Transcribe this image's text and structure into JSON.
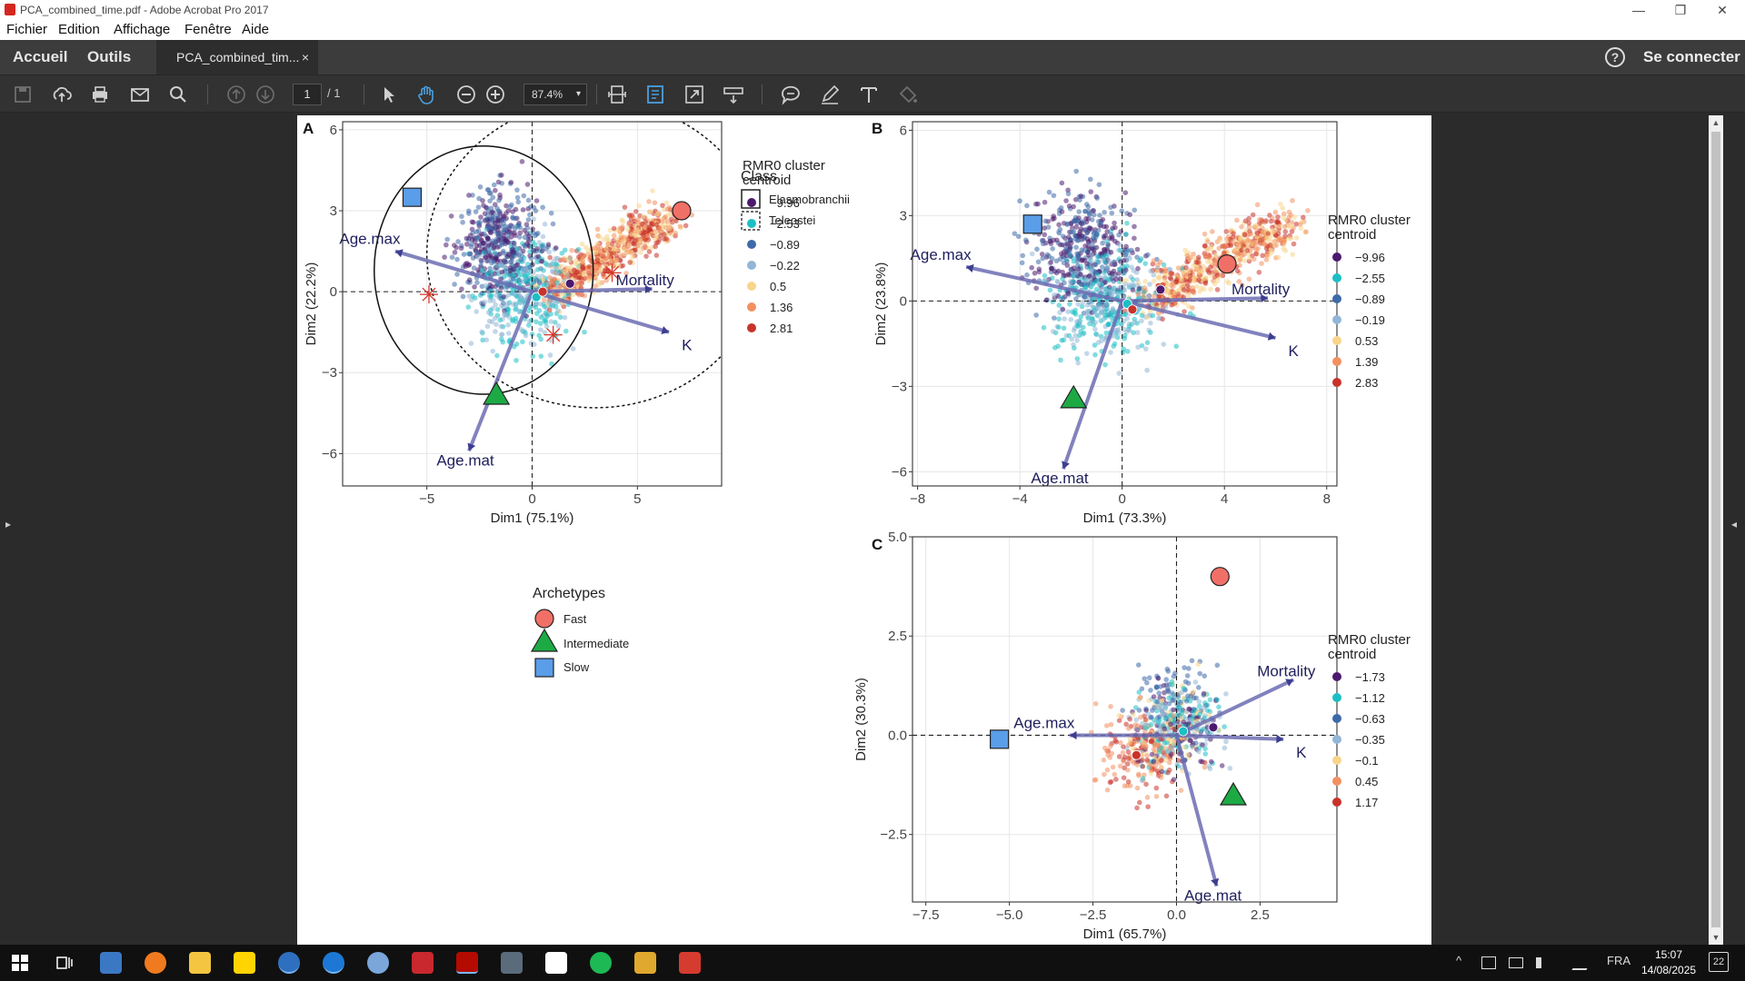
{
  "window": {
    "title": "PCA_combined_time.pdf - Adobe Acrobat Pro 2017",
    "icons": {
      "pdf": "pdf-file-icon",
      "minimize": "minimize-icon",
      "restore": "restore-icon",
      "close": "close-icon"
    },
    "min_glyph": "—",
    "restore_glyph": "❐",
    "close_glyph": "✕"
  },
  "menu": {
    "items": [
      "Fichier",
      "Edition",
      "Affichage",
      "Fenêtre",
      "Aide"
    ]
  },
  "tabs": {
    "home": "Accueil",
    "tools": "Outils",
    "document": "PCA_combined_tim...",
    "close_glyph": "×",
    "help_glyph": "?",
    "login": "Se connecter"
  },
  "toolbar": {
    "page_current": "1",
    "page_total": "/ 1",
    "zoom": "87.4%",
    "caret": "▾",
    "icons": [
      "save-icon",
      "cloud-upload-icon",
      "print-icon",
      "email-icon",
      "search-icon",
      "page-up-icon",
      "page-down-icon",
      "select-arrow-icon",
      "hand-icon",
      "zoom-out-icon",
      "zoom-in-icon",
      "fit-page-icon",
      "fit-width-icon",
      "fullscreen-icon",
      "scroll-mode-icon",
      "comment-icon",
      "pen-icon",
      "text-icon",
      "fill-icon"
    ]
  },
  "side": {
    "left_arrow": "▸",
    "right_arrow": "◂",
    "scroll_up": "▲",
    "scroll_down": "▼"
  },
  "figure": {
    "legend_class": {
      "title": "Class",
      "items": [
        "Elasmobranchii",
        "Teleostei"
      ]
    },
    "legend_archetypes": {
      "title": "Archetypes",
      "items": [
        "Fast",
        "Intermediate",
        "Slow"
      ]
    },
    "archetype_colors": {
      "Fast": "#f07067",
      "Intermediate": "#1daa45",
      "Slow": "#5a9de8"
    },
    "cluster_colors": [
      "#4b1a6e",
      "#1cbfc4",
      "#3e6aa8",
      "#92b6d6",
      "#f8d58a",
      "#f29060",
      "#c8332a"
    ],
    "arrow_color": "#6c6cb3"
  },
  "chart_data": [
    {
      "panel": "A",
      "type": "scatter",
      "xlabel": "Dim1 (75.1%)",
      "ylabel": "Dim2 (22.2%)",
      "xlim": [
        -9,
        9
      ],
      "ylim": [
        -7.2,
        6.3
      ],
      "xticks": [
        -5,
        0,
        5
      ],
      "yticks": [
        -6,
        -3,
        0,
        3,
        6
      ],
      "xtick_labels": [
        "−5",
        "0",
        "5"
      ],
      "ytick_labels": [
        "−6",
        "−3",
        "0",
        "3",
        "6"
      ],
      "legend_title": "RMR0 cluster centroid",
      "legend": [
        "−9.96",
        "−2.53",
        "−0.89",
        "−0.22",
        "0.5",
        "1.36",
        "2.81"
      ],
      "vectors": [
        {
          "name": "Age.max",
          "x": -6.5,
          "y": 1.5
        },
        {
          "name": "Mortality",
          "x": 5.7,
          "y": 0.1
        },
        {
          "name": "K",
          "x": 6.5,
          "y": -1.5
        },
        {
          "name": "Age.mat",
          "x": -3.0,
          "y": -5.9
        }
      ],
      "archetypes": [
        {
          "name": "Fast",
          "x": 7.1,
          "y": 3.0
        },
        {
          "name": "Intermediate",
          "x": -1.7,
          "y": -3.8
        },
        {
          "name": "Slow",
          "x": -5.7,
          "y": 3.5
        }
      ],
      "class_centroids": [
        {
          "class": "Elasmobranchii",
          "x": -4.9,
          "y": -0.1
        },
        {
          "class": "Elasmobranchii",
          "x": 1.0,
          "y": -1.6
        },
        {
          "class": "Teleostei",
          "x": 3.8,
          "y": 0.7
        }
      ],
      "cluster_centroids": [
        {
          "x": 1.8,
          "y": 0.3,
          "cluster": 0
        },
        {
          "x": 0.2,
          "y": -0.2,
          "cluster": 1
        },
        {
          "x": 0.5,
          "y": 0.0,
          "cluster": 6
        }
      ],
      "ellipses": [
        {
          "class": "Elasmobranchii",
          "cx": -2.3,
          "cy": 0.8,
          "rx": 5.2,
          "ry": 4.6
        },
        {
          "class": "Teleostei",
          "cx": 3.0,
          "cy": 1.4,
          "rx": 8.0,
          "ry": 5.7
        }
      ]
    },
    {
      "panel": "B",
      "type": "scatter",
      "xlabel": "Dim1 (73.3%)",
      "ylabel": "Dim2 (23.8%)",
      "xlim": [
        -8.2,
        8.4
      ],
      "ylim": [
        -6.5,
        6.3
      ],
      "xticks": [
        -8,
        -4,
        0,
        4,
        8
      ],
      "yticks": [
        -6,
        -3,
        0,
        3,
        6
      ],
      "xtick_labels": [
        "−8",
        "−4",
        "0",
        "4",
        "8"
      ],
      "ytick_labels": [
        "−6",
        "−3",
        "0",
        "3",
        "6"
      ],
      "legend_title": "RMR0 cluster centroid",
      "legend": [
        "−9.96",
        "−2.55",
        "−0.89",
        "−0.19",
        "0.53",
        "1.39",
        "2.83"
      ],
      "vectors": [
        {
          "name": "Age.max",
          "x": -6.1,
          "y": 1.2
        },
        {
          "name": "Mortality",
          "x": 5.7,
          "y": 0.1
        },
        {
          "name": "K",
          "x": 6.0,
          "y": -1.3
        },
        {
          "name": "Age.mat",
          "x": -2.3,
          "y": -5.9
        }
      ],
      "archetypes": [
        {
          "name": "Fast",
          "x": 4.1,
          "y": 1.3
        },
        {
          "name": "Intermediate",
          "x": -1.9,
          "y": -3.4
        },
        {
          "name": "Slow",
          "x": -3.5,
          "y": 2.7
        }
      ],
      "cluster_centroids": [
        {
          "x": 1.5,
          "y": 0.4,
          "cluster": 0
        },
        {
          "x": 0.2,
          "y": -0.1,
          "cluster": 1
        },
        {
          "x": 0.4,
          "y": -0.3,
          "cluster": 6
        }
      ]
    },
    {
      "panel": "C",
      "type": "scatter",
      "xlabel": "Dim1 (65.7%)",
      "ylabel": "Dim2 (30.3%)",
      "xlim": [
        -7.9,
        4.8
      ],
      "ylim": [
        -4.2,
        5.0
      ],
      "xticks": [
        -7.5,
        -5.0,
        -2.5,
        0.0,
        2.5
      ],
      "yticks": [
        -2.5,
        0.0,
        2.5,
        5.0
      ],
      "xtick_labels": [
        "−7.5",
        "−5.0",
        "−2.5",
        "0.0",
        "2.5"
      ],
      "ytick_labels": [
        "−2.5",
        "0.0",
        "2.5",
        "5.0"
      ],
      "legend_title": "RMR0 cluster centroid",
      "legend": [
        "−1.73",
        "−1.12",
        "−0.63",
        "−0.35",
        "−0.1",
        "0.45",
        "1.17"
      ],
      "vectors": [
        {
          "name": "Age.max",
          "x": -3.2,
          "y": 0.0
        },
        {
          "name": "Mortality",
          "x": 3.5,
          "y": 1.4
        },
        {
          "name": "K",
          "x": 3.2,
          "y": -0.1
        },
        {
          "name": "Age.mat",
          "x": 1.2,
          "y": -3.8
        }
      ],
      "archetypes": [
        {
          "name": "Fast",
          "x": 1.3,
          "y": 4.0
        },
        {
          "name": "Intermediate",
          "x": 1.7,
          "y": -1.5
        },
        {
          "name": "Slow",
          "x": -5.3,
          "y": -0.1
        }
      ],
      "cluster_centroids": [
        {
          "x": 1.1,
          "y": 0.2,
          "cluster": 0
        },
        {
          "x": 0.2,
          "y": 0.1,
          "cluster": 1
        },
        {
          "x": -1.2,
          "y": -0.5,
          "cluster": 6
        }
      ]
    }
  ],
  "taskbar": {
    "apps": [
      "windows-start-icon",
      "task-view-icon",
      "cube-app-icon",
      "firefox-icon",
      "file-explorer-icon",
      "sticky-notes-icon",
      "helper-app-icon",
      "browser-app-icon",
      "r-app-icon",
      "shield-app-icon",
      "acrobat-icon",
      "snipping-icon",
      "notion-icon",
      "spotify-icon",
      "git-icon",
      "tool-app-icon"
    ],
    "tray_lang": "FRA",
    "tray_caret": "^",
    "time": "15:07",
    "date": "14/08/2025",
    "notif": "22"
  }
}
